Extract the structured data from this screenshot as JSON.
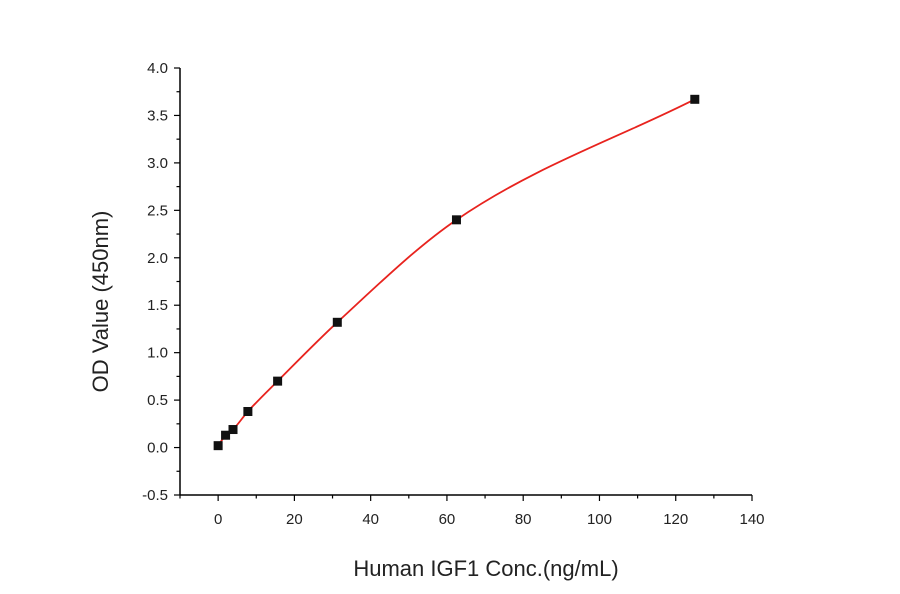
{
  "chart_data": {
    "type": "scatter",
    "title": "",
    "xlabel": "Human IGF1 Conc.(ng/mL)",
    "ylabel": "OD Value (450nm)",
    "xlim": [
      -10,
      140
    ],
    "ylim": [
      -0.5,
      4.0
    ],
    "x_ticks": [
      0,
      20,
      40,
      60,
      80,
      100,
      120,
      140
    ],
    "y_ticks": [
      -0.5,
      0.0,
      0.5,
      1.0,
      1.5,
      2.0,
      2.5,
      3.0,
      3.5,
      4.0
    ],
    "x_tick_labels": [
      "0",
      "20",
      "40",
      "60",
      "80",
      "100",
      "120",
      "140"
    ],
    "y_tick_labels": [
      "-0.5",
      "0.0",
      "0.5",
      "1.0",
      "1.5",
      "2.0",
      "2.5",
      "3.0",
      "3.5",
      "4.0"
    ],
    "grid": false,
    "series": [
      {
        "x": [
          0,
          1.95,
          3.9,
          7.8,
          15.6,
          31.25,
          62.5,
          125
        ],
        "y": [
          0.02,
          0.13,
          0.19,
          0.38,
          0.7,
          1.32,
          2.4,
          3.67
        ],
        "marker": "square",
        "color": "#111111",
        "fit_color": "#e8231e"
      }
    ]
  }
}
